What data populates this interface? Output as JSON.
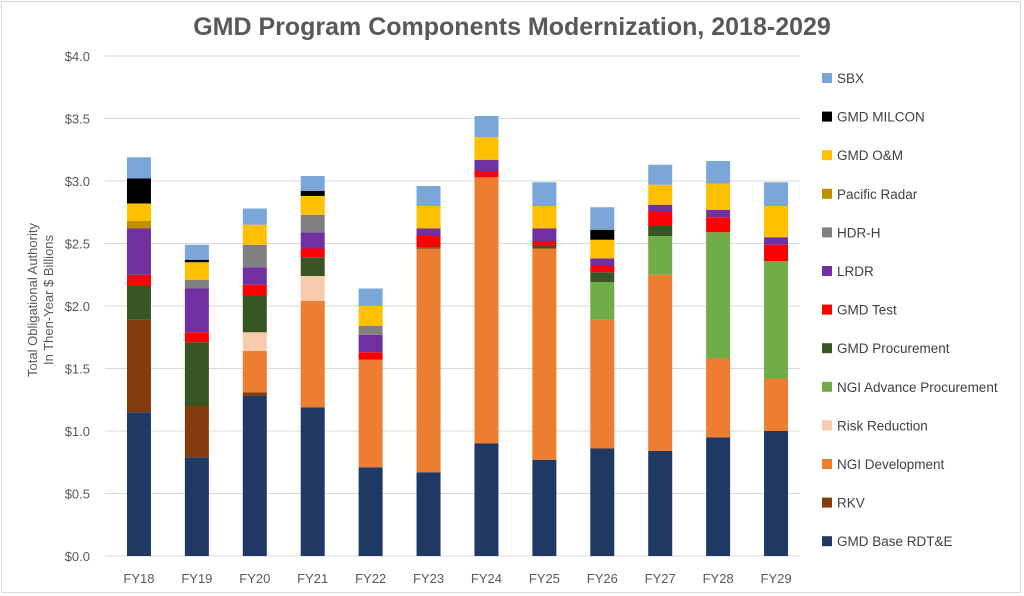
{
  "chart_data": {
    "type": "bar",
    "stacked": true,
    "title": "GMD Program Components Modernization, 2018-2029",
    "ylabel_lines": [
      "Total Obligational Authority",
      "In Then-Year $ Billions"
    ],
    "xlabel": "",
    "ylim": [
      0,
      4.0
    ],
    "y_ticks": [
      "$0.0",
      "$0.5",
      "$1.0",
      "$1.5",
      "$2.0",
      "$2.5",
      "$3.0",
      "$3.5",
      "$4.0"
    ],
    "grid": "horizontal",
    "legend_position": "right",
    "categories": [
      "FY18",
      "FY19",
      "FY20",
      "FY21",
      "FY22",
      "FY23",
      "FY24",
      "FY25",
      "FY26",
      "FY27",
      "FY28",
      "FY29"
    ],
    "series": [
      {
        "name": "GMD Base RDT&E",
        "color": "#203864",
        "values": [
          1.15,
          0.79,
          1.28,
          1.19,
          0.71,
          0.67,
          0.9,
          0.77,
          0.86,
          0.84,
          0.95,
          1.0
        ]
      },
      {
        "name": "RKV",
        "color": "#843c0c",
        "values": [
          0.74,
          0.41,
          0.03,
          0,
          0,
          0,
          0,
          0,
          0,
          0,
          0,
          0
        ]
      },
      {
        "name": "NGI Development",
        "color": "#ed7d31",
        "values": [
          0,
          0,
          0.33,
          0.85,
          0.86,
          1.79,
          2.13,
          1.69,
          1.03,
          1.41,
          0.63,
          0.42
        ]
      },
      {
        "name": "Risk Reduction",
        "color": "#f8cbad",
        "values": [
          0,
          0,
          0.15,
          0.2,
          0,
          0,
          0,
          0,
          0,
          0,
          0,
          0
        ]
      },
      {
        "name": "NGI Advance Procurement",
        "color": "#70ad47",
        "values": [
          0,
          0,
          0,
          0,
          0,
          0,
          0,
          0,
          0.3,
          0.31,
          1.01,
          0.94
        ]
      },
      {
        "name": "GMD Procurement",
        "color": "#375623",
        "values": [
          0.27,
          0.51,
          0.29,
          0.15,
          0,
          0.01,
          0,
          0.02,
          0.08,
          0.08,
          0,
          0
        ]
      },
      {
        "name": "GMD Test",
        "color": "#ff0000",
        "values": [
          0.09,
          0.08,
          0.09,
          0.07,
          0.06,
          0.09,
          0.05,
          0.04,
          0.05,
          0.12,
          0.12,
          0.13
        ]
      },
      {
        "name": "LRDR",
        "color": "#7030a0",
        "values": [
          0.37,
          0.35,
          0.14,
          0.13,
          0.14,
          0.06,
          0.09,
          0.1,
          0.06,
          0.05,
          0.06,
          0.06
        ]
      },
      {
        "name": "HDR-H",
        "color": "#808080",
        "values": [
          0,
          0.07,
          0.18,
          0.14,
          0.07,
          0,
          0,
          0,
          0,
          0,
          0,
          0
        ]
      },
      {
        "name": "Pacific Radar",
        "color": "#bf9000",
        "values": [
          0.06,
          0,
          0,
          0,
          0,
          0,
          0,
          0,
          0,
          0,
          0,
          0
        ]
      },
      {
        "name": "GMD O&M",
        "color": "#ffc000",
        "values": [
          0.14,
          0.14,
          0.16,
          0.15,
          0.16,
          0.18,
          0.18,
          0.18,
          0.15,
          0.16,
          0.21,
          0.25
        ]
      },
      {
        "name": "GMD MILCON",
        "color": "#000000",
        "values": [
          0.2,
          0.02,
          0,
          0.04,
          0,
          0,
          0,
          0,
          0.08,
          0,
          0,
          0
        ]
      },
      {
        "name": "SBX",
        "color": "#7ba7d8",
        "values": [
          0.17,
          0.12,
          0.13,
          0.12,
          0.14,
          0.16,
          0.17,
          0.19,
          0.18,
          0.16,
          0.18,
          0.19
        ]
      }
    ]
  }
}
